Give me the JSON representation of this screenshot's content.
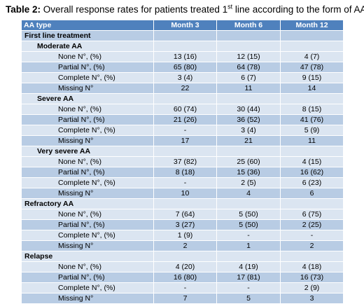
{
  "caption": {
    "prefix": "Table 2:",
    "text_before_sup": " Overall response rates for patients treated 1",
    "sup": "st",
    "text_after_sup": " line according to the form of AA"
  },
  "header": {
    "c0": "AA type",
    "c1": "Month 3",
    "c2": "Month 6",
    "c3": "Month 12"
  },
  "section_label": "First line treatment",
  "groups": [
    {
      "label": "Moderate AA",
      "rows": [
        [
          "None N°, (%)",
          "13 (16)",
          "12 (15)",
          "4 (7)"
        ],
        [
          "Partial N°, (%)",
          "65 (80)",
          "64 (78)",
          "47 (78)"
        ],
        [
          "Complete N°, (%)",
          "3 (4)",
          "6 (7)",
          "9 (15)"
        ],
        [
          "Missing N°",
          "22",
          "11",
          "14"
        ]
      ]
    },
    {
      "label": "Severe AA",
      "rows": [
        [
          "None N°, (%)",
          "60 (74)",
          "30 (44)",
          "8 (15)"
        ],
        [
          "Partial N°, (%)",
          "21 (26)",
          "36 (52)",
          "41 (76)"
        ],
        [
          "Complete N°, (%)",
          "-",
          "3 (4)",
          "5 (9)"
        ],
        [
          "Missing N°",
          "17",
          "21",
          "11"
        ]
      ]
    },
    {
      "label": "Very severe AA",
      "rows": [
        [
          "None N°, (%)",
          "37 (82)",
          "25 (60)",
          "4 (15)"
        ],
        [
          "Partial N°, (%)",
          "8 (18)",
          "15 (36)",
          "16 (62)"
        ],
        [
          "Complete N°, (%)",
          "-",
          "2 (5)",
          "6 (23)"
        ],
        [
          "Missing N°",
          "10",
          "4",
          "6"
        ]
      ]
    }
  ],
  "standalone": [
    {
      "label": "Refractory AA",
      "rows": [
        [
          "None N°, (%)",
          "7 (64)",
          "5 (50)",
          "6 (75)"
        ],
        [
          "Partial N°, (%)",
          "3 (27)",
          "5 (50)",
          "2 (25)"
        ],
        [
          "Complete N°, (%)",
          "1 (9)",
          "-",
          "-"
        ],
        [
          "Missing N°",
          "2",
          "1",
          "2"
        ]
      ]
    },
    {
      "label": "Relapse",
      "rows": [
        [
          "None N°, (%)",
          "4 (20)",
          "4 (19)",
          "4 (18)"
        ],
        [
          "Partial N°, (%)",
          "16 (80)",
          "17 (81)",
          "16 (73)"
        ],
        [
          "Complete N°, (%)",
          "-",
          "-",
          "2 (9)"
        ],
        [
          "Missing N°",
          "7",
          "5",
          "3"
        ]
      ]
    }
  ]
}
